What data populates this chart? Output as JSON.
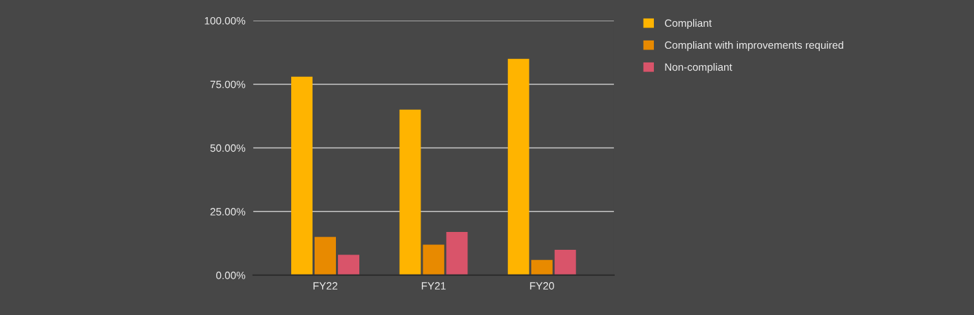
{
  "chart_data": {
    "type": "bar",
    "categories": [
      "FY22",
      "FY21",
      "FY20"
    ],
    "series": [
      {
        "name": "Compliant",
        "color": "#ffb400",
        "values": [
          78,
          65,
          85
        ]
      },
      {
        "name": "Compliant with improvements required",
        "color": "#e88a00",
        "values": [
          15,
          12,
          6
        ]
      },
      {
        "name": "Non-compliant",
        "color": "#d9546a",
        "values": [
          8,
          17,
          10
        ]
      }
    ],
    "ylim": [
      0,
      100
    ],
    "yticks": [
      {
        "value": 0,
        "label": "0.00%"
      },
      {
        "value": 25,
        "label": "25.00%"
      },
      {
        "value": 50,
        "label": "50.00%"
      },
      {
        "value": 75,
        "label": "75.00%"
      },
      {
        "value": 100,
        "label": "100.00%"
      }
    ],
    "grid": "y",
    "legend": "right"
  }
}
